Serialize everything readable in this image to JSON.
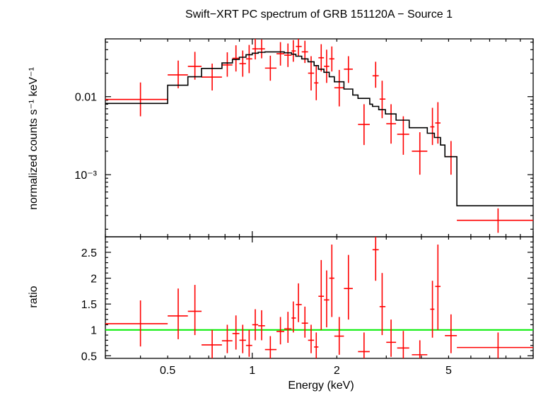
{
  "chart_data": [
    {
      "type": "scatter",
      "title": "Swift−XRT PC spectrum of GRB 151120A − Source 1",
      "ylabel": "normalized counts s⁻¹ keV⁻¹",
      "xlabel": "",
      "x_scale": "log",
      "y_scale": "log",
      "xlim": [
        0.3,
        10
      ],
      "ylim": [
        0.00016,
        0.055
      ],
      "y_ticks": [
        {
          "value": 0.01,
          "label": "0.01"
        },
        {
          "value": 0.001,
          "label": "10⁻³"
        }
      ],
      "series": [
        {
          "type": "errorbar",
          "color": "#ff0000",
          "points": [
            {
              "x": 0.4,
              "xlo": 0.3,
              "xhi": 0.5,
              "y": 0.0092,
              "ylo": 0.0056,
              "yhi": 0.0152
            },
            {
              "x": 0.545,
              "xlo": 0.5,
              "xhi": 0.59,
              "y": 0.019,
              "ylo": 0.0128,
              "yhi": 0.029
            },
            {
              "x": 0.625,
              "xlo": 0.59,
              "xhi": 0.66,
              "y": 0.0245,
              "ylo": 0.0165,
              "yhi": 0.0375
            },
            {
              "x": 0.72,
              "xlo": 0.66,
              "xhi": 0.78,
              "y": 0.0178,
              "ylo": 0.012,
              "yhi": 0.0265
            },
            {
              "x": 0.815,
              "xlo": 0.78,
              "xhi": 0.85,
              "y": 0.0255,
              "ylo": 0.018,
              "yhi": 0.037
            },
            {
              "x": 0.875,
              "xlo": 0.85,
              "xhi": 0.9,
              "y": 0.031,
              "ylo": 0.021,
              "yhi": 0.0455
            },
            {
              "x": 0.925,
              "xlo": 0.9,
              "xhi": 0.95,
              "y": 0.0265,
              "ylo": 0.018,
              "yhi": 0.039
            },
            {
              "x": 0.975,
              "xlo": 0.95,
              "xhi": 1.0,
              "y": 0.0305,
              "ylo": 0.02,
              "yhi": 0.046
            },
            {
              "x": 1.025,
              "xlo": 1.0,
              "xhi": 1.05,
              "y": 0.041,
              "ylo": 0.03,
              "yhi": 0.055
            },
            {
              "x": 1.08,
              "xlo": 1.05,
              "xhi": 1.11,
              "y": 0.041,
              "ylo": 0.031,
              "yhi": 0.054
            },
            {
              "x": 1.16,
              "xlo": 1.11,
              "xhi": 1.22,
              "y": 0.0232,
              "ylo": 0.016,
              "yhi": 0.0335
            },
            {
              "x": 1.26,
              "xlo": 1.22,
              "xhi": 1.3,
              "y": 0.0355,
              "ylo": 0.025,
              "yhi": 0.05
            },
            {
              "x": 1.34,
              "xlo": 1.3,
              "xhi": 1.38,
              "y": 0.034,
              "ylo": 0.024,
              "yhi": 0.048
            },
            {
              "x": 1.4,
              "xlo": 1.38,
              "xhi": 1.43,
              "y": 0.0385,
              "ylo": 0.028,
              "yhi": 0.053
            },
            {
              "x": 1.46,
              "xlo": 1.43,
              "xhi": 1.5,
              "y": 0.044,
              "ylo": 0.033,
              "yhi": 0.055
            },
            {
              "x": 1.54,
              "xlo": 1.5,
              "xhi": 1.58,
              "y": 0.0375,
              "ylo": 0.027,
              "yhi": 0.052
            },
            {
              "x": 1.62,
              "xlo": 1.58,
              "xhi": 1.66,
              "y": 0.02,
              "ylo": 0.012,
              "yhi": 0.033
            },
            {
              "x": 1.69,
              "xlo": 1.66,
              "xhi": 1.72,
              "y": 0.015,
              "ylo": 0.009,
              "yhi": 0.025
            },
            {
              "x": 1.76,
              "xlo": 1.72,
              "xhi": 1.8,
              "y": 0.0315,
              "ylo": 0.021,
              "yhi": 0.047
            },
            {
              "x": 1.84,
              "xlo": 1.8,
              "xhi": 1.88,
              "y": 0.0245,
              "ylo": 0.015,
              "yhi": 0.04
            },
            {
              "x": 1.92,
              "xlo": 1.88,
              "xhi": 1.96,
              "y": 0.0305,
              "ylo": 0.021,
              "yhi": 0.044
            },
            {
              "x": 2.04,
              "xlo": 1.96,
              "xhi": 2.12,
              "y": 0.013,
              "ylo": 0.0075,
              "yhi": 0.022
            },
            {
              "x": 2.2,
              "xlo": 2.12,
              "xhi": 2.28,
              "y": 0.0225,
              "ylo": 0.015,
              "yhi": 0.033
            },
            {
              "x": 2.5,
              "xlo": 2.38,
              "xhi": 2.62,
              "y": 0.0044,
              "ylo": 0.0024,
              "yhi": 0.008
            },
            {
              "x": 2.75,
              "xlo": 2.68,
              "xhi": 2.82,
              "y": 0.0185,
              "ylo": 0.013,
              "yhi": 0.028
            },
            {
              "x": 2.9,
              "xlo": 2.84,
              "xhi": 2.98,
              "y": 0.0093,
              "ylo": 0.0053,
              "yhi": 0.016
            },
            {
              "x": 3.12,
              "xlo": 3.0,
              "xhi": 3.25,
              "y": 0.0045,
              "ylo": 0.0025,
              "yhi": 0.008
            },
            {
              "x": 3.45,
              "xlo": 3.28,
              "xhi": 3.62,
              "y": 0.0033,
              "ylo": 0.0018,
              "yhi": 0.0056
            },
            {
              "x": 3.95,
              "xlo": 3.7,
              "xhi": 4.2,
              "y": 0.002,
              "ylo": 0.001,
              "yhi": 0.0035
            },
            {
              "x": 4.38,
              "xlo": 4.3,
              "xhi": 4.45,
              "y": 0.0041,
              "ylo": 0.0024,
              "yhi": 0.0072
            },
            {
              "x": 4.58,
              "xlo": 4.48,
              "xhi": 4.68,
              "y": 0.0046,
              "ylo": 0.0025,
              "yhi": 0.0085
            },
            {
              "x": 5.1,
              "xlo": 4.85,
              "xhi": 5.35,
              "y": 0.0017,
              "ylo": 0.001,
              "yhi": 0.0027
            },
            {
              "x": 7.5,
              "xlo": 5.35,
              "xhi": 10.0,
              "y": 0.00026,
              "ylo": 0.00018,
              "yhi": 0.00037
            }
          ]
        },
        {
          "type": "step",
          "color": "#000000",
          "edges": [
            0.3,
            0.5,
            0.59,
            0.66,
            0.78,
            0.85,
            0.9,
            0.95,
            1.0,
            1.05,
            1.11,
            1.22,
            1.3,
            1.38,
            1.43,
            1.5,
            1.58,
            1.66,
            1.72,
            1.8,
            1.88,
            1.96,
            2.12,
            2.28,
            2.38,
            2.62,
            2.68,
            2.82,
            2.98,
            3.25,
            3.62,
            4.2,
            4.45,
            4.68,
            4.85,
            5.35,
            10.0
          ],
          "values": [
            0.0082,
            0.014,
            0.018,
            0.023,
            0.027,
            0.03,
            0.032,
            0.0345,
            0.036,
            0.037,
            0.0375,
            0.0375,
            0.0365,
            0.035,
            0.033,
            0.0305,
            0.028,
            0.025,
            0.0225,
            0.0205,
            0.018,
            0.0155,
            0.0125,
            0.0105,
            0.0095,
            0.008,
            0.0075,
            0.0068,
            0.006,
            0.005,
            0.004,
            0.0034,
            0.003,
            0.0024,
            0.0017,
            0.0004
          ]
        }
      ]
    },
    {
      "type": "scatter",
      "title": "",
      "xlabel": "Energy (keV)",
      "ylabel": "ratio",
      "x_scale": "log",
      "y_scale": "linear",
      "xlim": [
        0.3,
        10
      ],
      "ylim": [
        0.45,
        2.8
      ],
      "x_ticks": [
        {
          "value": 0.5,
          "label": "0.5"
        },
        {
          "value": 1,
          "label": "1"
        },
        {
          "value": 2,
          "label": "2"
        },
        {
          "value": 5,
          "label": "5"
        }
      ],
      "y_ticks": [
        {
          "value": 0.5,
          "label": "0.5"
        },
        {
          "value": 1,
          "label": "1"
        },
        {
          "value": 1.5,
          "label": "1.5"
        },
        {
          "value": 2,
          "label": "2"
        },
        {
          "value": 2.5,
          "label": "2.5"
        }
      ],
      "reference_line": {
        "y": 1,
        "color": "#00ee00"
      },
      "series": [
        {
          "type": "errorbar",
          "color": "#ff0000",
          "points": [
            {
              "x": 0.4,
              "xlo": 0.3,
              "xhi": 0.5,
              "y": 1.12,
              "ylo": 0.68,
              "yhi": 1.57
            },
            {
              "x": 0.545,
              "xlo": 0.5,
              "xhi": 0.59,
              "y": 1.27,
              "ylo": 0.82,
              "yhi": 1.8
            },
            {
              "x": 0.625,
              "xlo": 0.59,
              "xhi": 0.66,
              "y": 1.36,
              "ylo": 0.9,
              "yhi": 1.87
            },
            {
              "x": 0.72,
              "xlo": 0.66,
              "xhi": 0.78,
              "y": 0.71,
              "ylo": 0.45,
              "yhi": 1.0
            },
            {
              "x": 0.815,
              "xlo": 0.78,
              "xhi": 0.85,
              "y": 0.79,
              "ylo": 0.55,
              "yhi": 1.1
            },
            {
              "x": 0.875,
              "xlo": 0.85,
              "xhi": 0.9,
              "y": 0.93,
              "ylo": 0.62,
              "yhi": 1.28
            },
            {
              "x": 0.925,
              "xlo": 0.9,
              "xhi": 0.95,
              "y": 0.8,
              "ylo": 0.55,
              "yhi": 1.1
            },
            {
              "x": 0.975,
              "xlo": 0.95,
              "xhi": 1.0,
              "y": 0.7,
              "ylo": 0.48,
              "yhi": 1.0
            },
            {
              "x": 1.025,
              "xlo": 1.0,
              "xhi": 1.05,
              "y": 1.1,
              "ylo": 0.8,
              "yhi": 1.4
            },
            {
              "x": 1.08,
              "xlo": 1.05,
              "xhi": 1.11,
              "y": 1.08,
              "ylo": 0.8,
              "yhi": 1.38
            },
            {
              "x": 1.16,
              "xlo": 1.11,
              "xhi": 1.22,
              "y": 0.62,
              "ylo": 0.45,
              "yhi": 0.88
            },
            {
              "x": 1.26,
              "xlo": 1.22,
              "xhi": 1.3,
              "y": 0.97,
              "ylo": 0.72,
              "yhi": 1.25
            },
            {
              "x": 1.34,
              "xlo": 1.3,
              "xhi": 1.38,
              "y": 1.02,
              "ylo": 0.75,
              "yhi": 1.35
            },
            {
              "x": 1.4,
              "xlo": 1.38,
              "xhi": 1.43,
              "y": 1.23,
              "ylo": 0.95,
              "yhi": 1.55
            },
            {
              "x": 1.46,
              "xlo": 1.43,
              "xhi": 1.5,
              "y": 1.49,
              "ylo": 1.15,
              "yhi": 1.9
            },
            {
              "x": 1.54,
              "xlo": 1.5,
              "xhi": 1.58,
              "y": 1.13,
              "ylo": 0.85,
              "yhi": 1.45
            },
            {
              "x": 1.62,
              "xlo": 1.58,
              "xhi": 1.66,
              "y": 0.8,
              "ylo": 0.55,
              "yhi": 1.1
            },
            {
              "x": 1.69,
              "xlo": 1.66,
              "xhi": 1.72,
              "y": 0.67,
              "ylo": 0.45,
              "yhi": 0.95
            },
            {
              "x": 1.76,
              "xlo": 1.72,
              "xhi": 1.8,
              "y": 1.65,
              "ylo": 1.0,
              "yhi": 2.35
            },
            {
              "x": 1.84,
              "xlo": 1.8,
              "xhi": 1.88,
              "y": 1.58,
              "ylo": 1.05,
              "yhi": 2.15
            },
            {
              "x": 1.92,
              "xlo": 1.88,
              "xhi": 1.96,
              "y": 2.0,
              "ylo": 1.25,
              "yhi": 2.65
            },
            {
              "x": 2.04,
              "xlo": 1.96,
              "xhi": 2.12,
              "y": 0.88,
              "ylo": 0.52,
              "yhi": 1.25
            },
            {
              "x": 2.2,
              "xlo": 2.12,
              "xhi": 2.28,
              "y": 1.8,
              "ylo": 1.2,
              "yhi": 2.45
            },
            {
              "x": 2.5,
              "xlo": 2.38,
              "xhi": 2.62,
              "y": 0.58,
              "ylo": 0.45,
              "yhi": 0.95
            },
            {
              "x": 2.75,
              "xlo": 2.68,
              "xhi": 2.82,
              "y": 2.55,
              "ylo": 1.95,
              "yhi": 2.8
            },
            {
              "x": 2.9,
              "xlo": 2.84,
              "xhi": 2.98,
              "y": 1.45,
              "ylo": 0.9,
              "yhi": 2.1
            },
            {
              "x": 3.12,
              "xlo": 3.0,
              "xhi": 3.25,
              "y": 0.76,
              "ylo": 0.48,
              "yhi": 1.2
            },
            {
              "x": 3.45,
              "xlo": 3.28,
              "xhi": 3.62,
              "y": 0.65,
              "ylo": 0.45,
              "yhi": 0.98
            },
            {
              "x": 3.95,
              "xlo": 3.7,
              "xhi": 4.2,
              "y": 0.52,
              "ylo": 0.45,
              "yhi": 0.8
            },
            {
              "x": 4.38,
              "xlo": 4.3,
              "xhi": 4.45,
              "y": 1.4,
              "ylo": 0.85,
              "yhi": 1.95
            },
            {
              "x": 4.58,
              "xlo": 4.48,
              "xhi": 4.68,
              "y": 1.84,
              "ylo": 1.0,
              "yhi": 2.65
            },
            {
              "x": 5.1,
              "xlo": 4.85,
              "xhi": 5.35,
              "y": 0.89,
              "ylo": 0.55,
              "yhi": 1.3
            },
            {
              "x": 7.5,
              "xlo": 5.35,
              "xhi": 10.0,
              "y": 0.66,
              "ylo": 0.45,
              "yhi": 0.95
            }
          ]
        }
      ]
    }
  ]
}
